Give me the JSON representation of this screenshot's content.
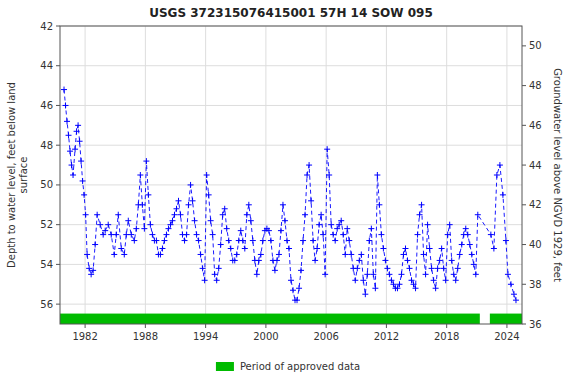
{
  "chart_data": {
    "type": "line",
    "title": "USGS 372315076415001 57H 14 SOW 095",
    "y_label": "Depth to water level, feet below land\nsurface",
    "y2_label": "Groundwater level above NGVD 1929, feet",
    "x": [
      1979.9,
      1980.05,
      1980.2,
      1980.35,
      1980.5,
      1980.65,
      1980.8,
      1981.0,
      1981.15,
      1981.3,
      1981.45,
      1981.6,
      1981.75,
      1981.9,
      1982.05,
      1982.2,
      1982.4,
      1982.6,
      1982.8,
      1983.0,
      1983.2,
      1983.5,
      1983.8,
      1984.0,
      1984.3,
      1984.6,
      1984.9,
      1985.1,
      1985.3,
      1985.6,
      1985.9,
      1986.1,
      1986.3,
      1986.6,
      1986.9,
      1987.1,
      1987.3,
      1987.5,
      1987.7,
      1987.9,
      1988.1,
      1988.3,
      1988.5,
      1988.7,
      1988.9,
      1989.1,
      1989.3,
      1989.5,
      1989.7,
      1989.9,
      1990.1,
      1990.3,
      1990.5,
      1990.7,
      1990.9,
      1991.1,
      1991.3,
      1991.5,
      1991.7,
      1991.9,
      1992.1,
      1992.3,
      1992.5,
      1992.7,
      1992.9,
      1993.1,
      1993.3,
      1993.5,
      1993.7,
      1993.9,
      1994.1,
      1994.3,
      1994.5,
      1994.7,
      1994.9,
      1995.1,
      1995.3,
      1995.5,
      1995.7,
      1995.9,
      1996.1,
      1996.3,
      1996.5,
      1996.7,
      1996.9,
      1997.1,
      1997.3,
      1997.5,
      1997.7,
      1997.9,
      1998.1,
      1998.3,
      1998.5,
      1998.7,
      1998.9,
      1999.1,
      1999.3,
      1999.5,
      1999.7,
      1999.9,
      2000.1,
      2000.3,
      2000.5,
      2000.7,
      2000.9,
      2001.1,
      2001.3,
      2001.5,
      2001.7,
      2001.9,
      2002.1,
      2002.3,
      2002.5,
      2002.7,
      2002.9,
      2003.1,
      2003.3,
      2003.5,
      2003.7,
      2003.9,
      2004.1,
      2004.3,
      2004.5,
      2004.7,
      2004.9,
      2005.1,
      2005.3,
      2005.5,
      2005.7,
      2005.9,
      2006.1,
      2006.3,
      2006.5,
      2006.7,
      2006.9,
      2007.1,
      2007.3,
      2007.5,
      2007.7,
      2007.9,
      2008.1,
      2008.3,
      2008.5,
      2008.7,
      2008.9,
      2009.1,
      2009.3,
      2009.5,
      2009.7,
      2009.9,
      2010.1,
      2010.3,
      2010.5,
      2010.7,
      2010.9,
      2011.1,
      2011.3,
      2011.5,
      2011.7,
      2011.9,
      2012.1,
      2012.3,
      2012.5,
      2012.7,
      2012.9,
      2013.1,
      2013.3,
      2013.5,
      2013.7,
      2013.9,
      2014.1,
      2014.3,
      2014.5,
      2014.7,
      2014.9,
      2015.1,
      2015.3,
      2015.5,
      2015.7,
      2015.9,
      2016.1,
      2016.3,
      2016.5,
      2016.7,
      2016.9,
      2017.1,
      2017.3,
      2017.5,
      2017.7,
      2017.9,
      2018.1,
      2018.3,
      2018.5,
      2018.7,
      2018.9,
      2019.1,
      2019.3,
      2019.5,
      2019.7,
      2019.9,
      2020.1,
      2020.3,
      2020.5,
      2020.7,
      2020.9,
      2021.1,
      2022.4,
      2022.7,
      2023.0,
      2023.3,
      2023.6,
      2023.9,
      2024.1,
      2024.4,
      2024.7,
      2024.9
    ],
    "series": [
      {
        "color": "#0000FF",
        "marker": "plus",
        "line_style": "dashed",
        "values": [
          45.2,
          46.0,
          46.8,
          47.5,
          48.3,
          49.0,
          49.5,
          48.2,
          47.3,
          47.0,
          47.8,
          48.8,
          49.8,
          50.5,
          51.5,
          53.5,
          54.2,
          54.5,
          54.3,
          53.0,
          51.5,
          52.0,
          52.5,
          52.3,
          52.0,
          52.5,
          53.5,
          52.5,
          51.5,
          53.2,
          53.5,
          52.5,
          51.8,
          52.5,
          52.8,
          52.2,
          51.0,
          49.5,
          51.0,
          52.2,
          48.8,
          50.5,
          52.0,
          52.5,
          52.8,
          52.8,
          53.5,
          53.5,
          53.2,
          52.8,
          52.5,
          52.2,
          52.0,
          51.8,
          51.5,
          51.2,
          50.8,
          51.5,
          52.5,
          52.8,
          52.5,
          51.0,
          50.0,
          50.8,
          51.8,
          52.5,
          52.8,
          53.5,
          54.2,
          54.8,
          49.5,
          50.5,
          51.8,
          52.5,
          54.5,
          54.8,
          54.2,
          53.0,
          51.5,
          51.2,
          52.2,
          52.8,
          53.2,
          53.8,
          53.8,
          53.5,
          52.8,
          52.3,
          52.8,
          53.2,
          51.5,
          51.0,
          51.8,
          52.8,
          53.8,
          54.5,
          53.8,
          53.5,
          52.8,
          52.3,
          52.2,
          52.3,
          52.8,
          53.8,
          54.3,
          53.8,
          53.5,
          52.3,
          51.0,
          51.8,
          52.8,
          53.2,
          54.8,
          55.3,
          55.8,
          55.8,
          55.2,
          54.3,
          52.8,
          51.5,
          49.5,
          49.0,
          50.8,
          52.8,
          53.8,
          53.2,
          52.0,
          51.5,
          52.5,
          54.5,
          48.2,
          49.5,
          52.0,
          52.5,
          52.8,
          52.2,
          52.0,
          51.8,
          52.5,
          53.5,
          52.2,
          52.8,
          53.5,
          54.2,
          54.8,
          54.2,
          53.8,
          53.5,
          54.8,
          55.5,
          54.5,
          52.8,
          52.2,
          54.5,
          55.2,
          49.5,
          51.0,
          52.5,
          53.2,
          53.8,
          54.2,
          54.5,
          54.8,
          55.0,
          55.2,
          55.2,
          55.0,
          54.5,
          53.5,
          53.2,
          53.8,
          54.2,
          54.8,
          55.0,
          55.2,
          52.5,
          51.5,
          51.0,
          53.5,
          54.5,
          52.0,
          53.2,
          54.2,
          54.8,
          55.2,
          54.2,
          53.8,
          53.2,
          54.2,
          54.8,
          52.5,
          52.0,
          53.8,
          54.5,
          54.8,
          54.2,
          53.5,
          53.0,
          52.5,
          52.2,
          52.5,
          53.0,
          53.5,
          54.0,
          54.5,
          51.5,
          52.5,
          53.2,
          49.5,
          49.0,
          50.5,
          52.8,
          54.5,
          55.0,
          55.5,
          55.8
        ]
      }
    ],
    "periods": {
      "name": "Period of approved data",
      "color": "#00BB00",
      "ranges": [
        [
          1979.5,
          2021.3
        ],
        [
          2022.3,
          2025.5
        ]
      ]
    },
    "xlim": [
      1979.5,
      2025.5
    ],
    "xticks": [
      1982,
      1988,
      1994,
      2000,
      2006,
      2012,
      2018,
      2024
    ],
    "ylim": [
      57,
      42
    ],
    "yticks": [
      42,
      44,
      46,
      48,
      50,
      52,
      54,
      56
    ],
    "y2lim": [
      36,
      51
    ],
    "y2ticks": [
      36,
      38,
      40,
      42,
      44,
      46,
      48,
      50
    ],
    "grid": true,
    "legend": "bottom"
  }
}
